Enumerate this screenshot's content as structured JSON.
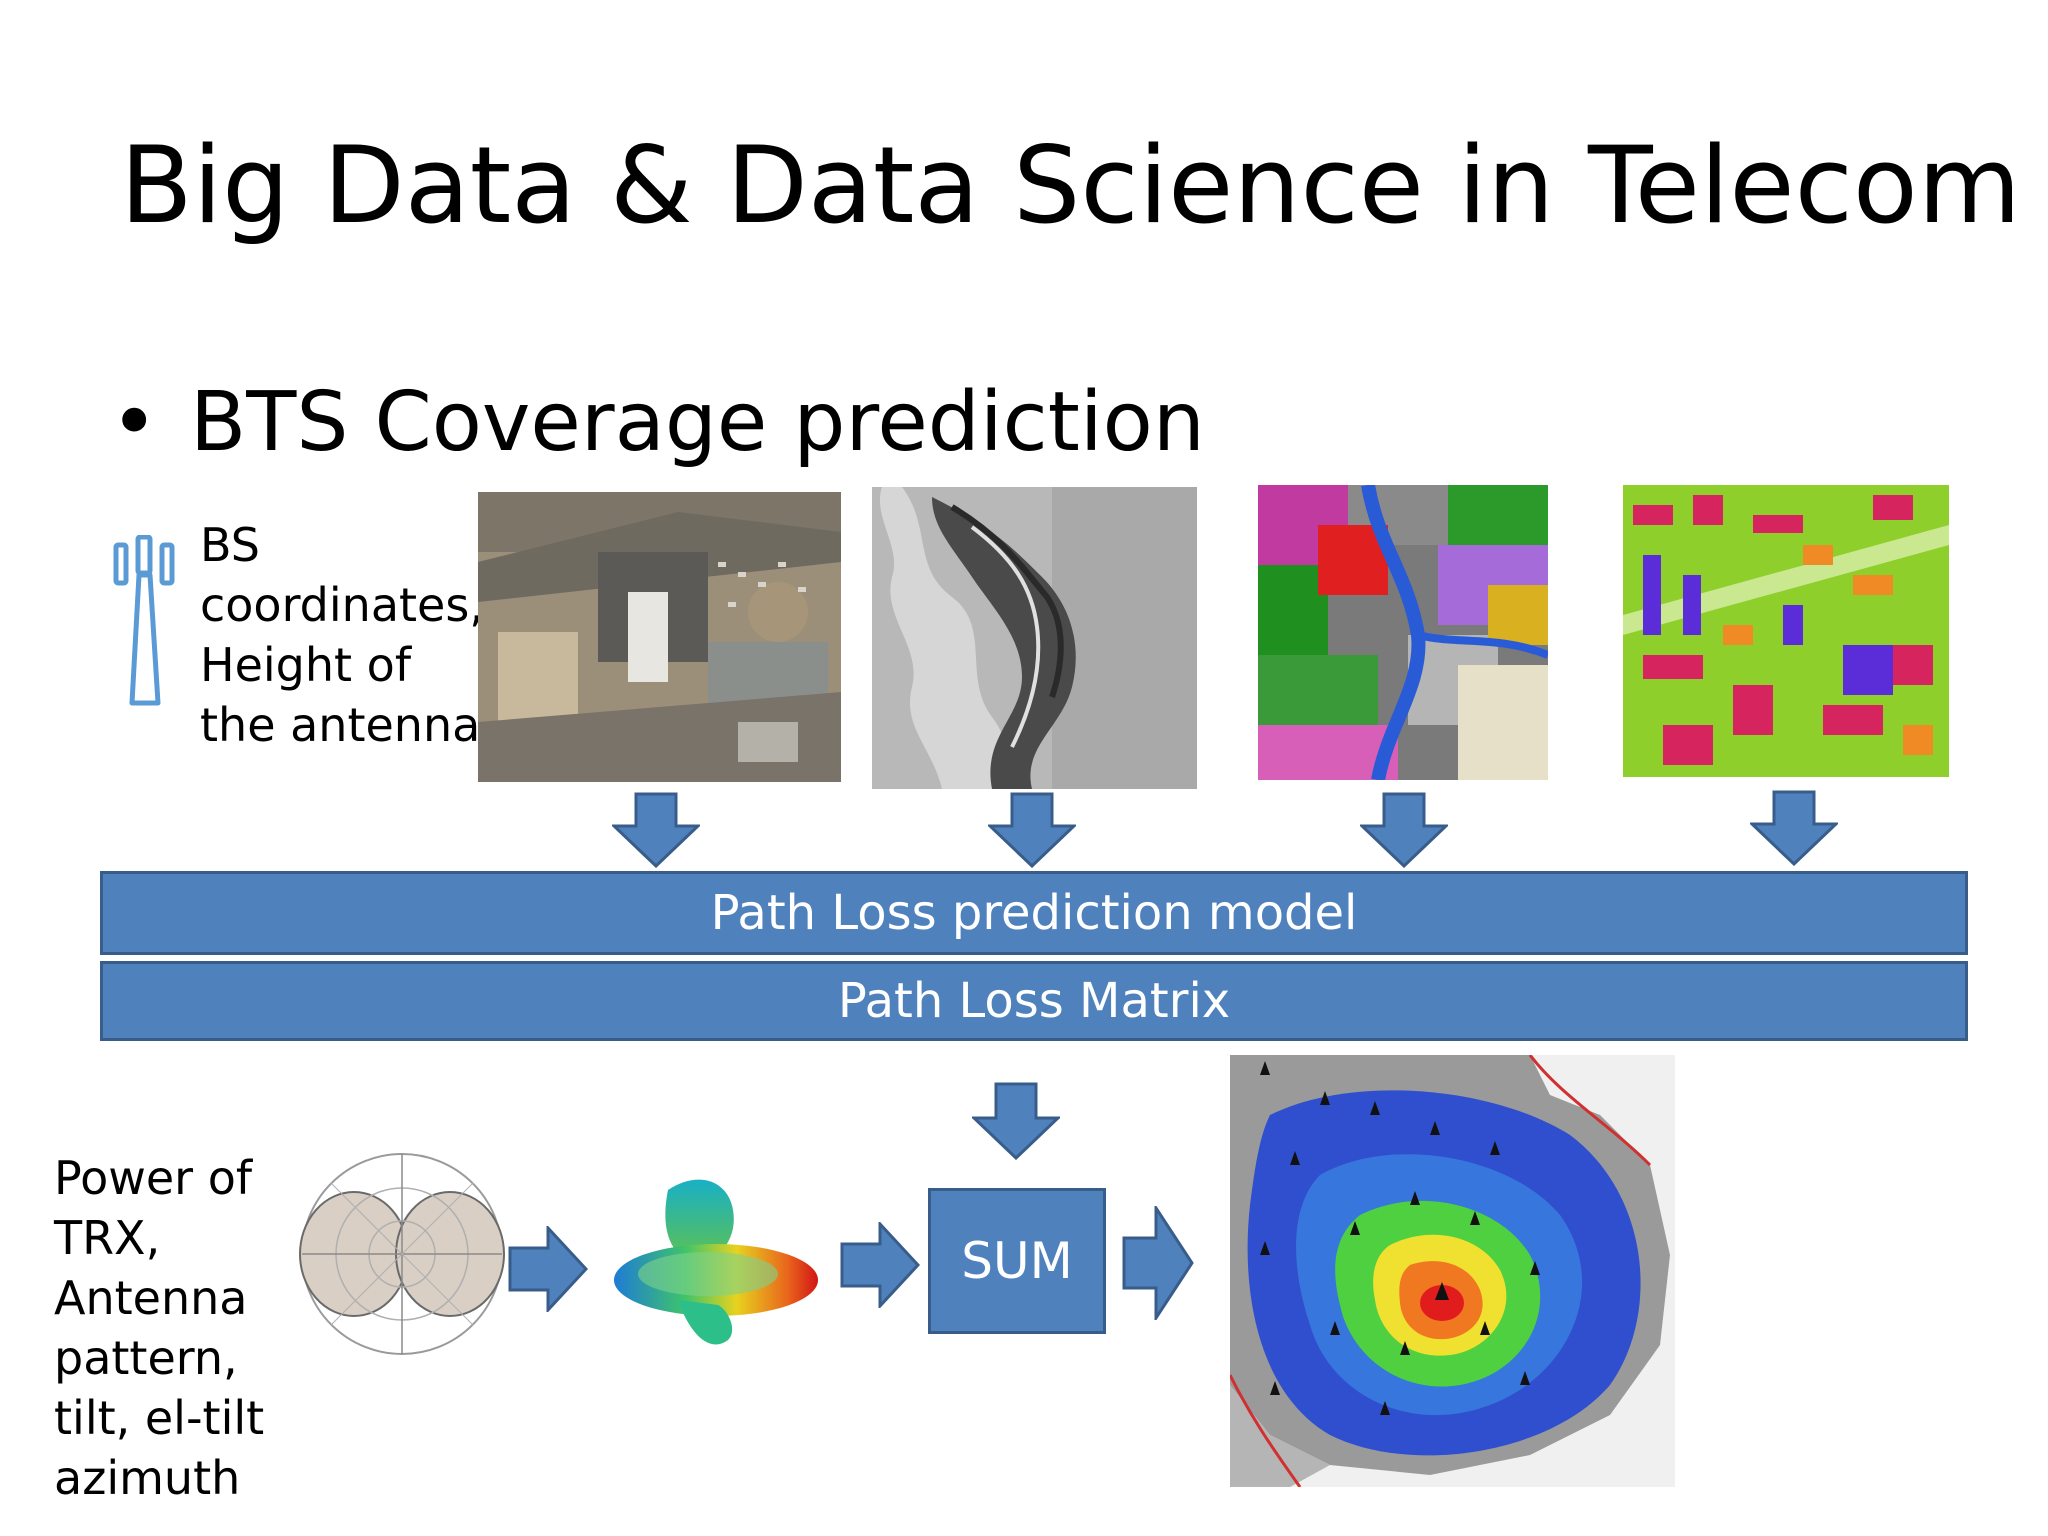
{
  "slide": {
    "title": "Big Data & Data Science in Telecom",
    "bullet_symbol": "•",
    "bullet_text": "BTS Coverage prediction"
  },
  "inputs": {
    "bs_label": "BS\ncoordinates,\nHeight of\nthe antenna",
    "trx_label": "Power of\nTRX,\nAntenna\npattern,\ntilt, el-tilt\nazimuth"
  },
  "images": [
    {
      "name": "satellite-image",
      "depicts": "aerial satellite photo"
    },
    {
      "name": "terrain-image",
      "depicts": "grayscale relief / elevation map"
    },
    {
      "name": "landuse-image",
      "depicts": "land use clutter map"
    },
    {
      "name": "buildings-image",
      "depicts": "3D building height map"
    },
    {
      "name": "antenna-polar-image",
      "depicts": "antenna radiation polar diagram"
    },
    {
      "name": "antenna-3d-pattern-image",
      "depicts": "3D antenna pattern"
    },
    {
      "name": "coverage-map-image",
      "depicts": "signal coverage heat map"
    }
  ],
  "process": {
    "model_label": "Path Loss prediction model",
    "matrix_label": "Path Loss Matrix",
    "sum_label": "SUM"
  },
  "colors": {
    "box_fill": "#4f81bd",
    "box_border": "#385d8a",
    "antenna_icon": "#5b9bd5"
  }
}
